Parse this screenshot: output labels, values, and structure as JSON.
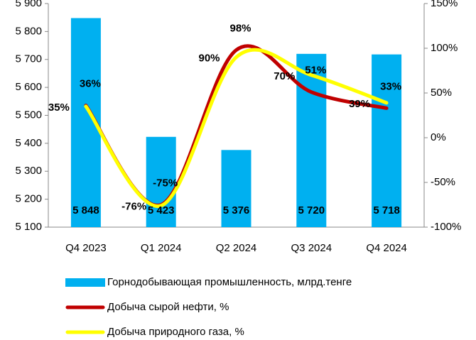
{
  "chart_data": {
    "type": "bar_line",
    "categories": [
      "Q4 2023",
      "Q1 2024",
      "Q2 2024",
      "Q3 2024",
      "Q4 2024"
    ],
    "ylim": [
      5100,
      5900
    ],
    "yticks": [
      {
        "value": 5100,
        "label": "5 100"
      },
      {
        "value": 5200,
        "label": "5 200"
      },
      {
        "value": 5300,
        "label": "5 300"
      },
      {
        "value": 5400,
        "label": "5 400"
      },
      {
        "value": 5500,
        "label": "5 500"
      },
      {
        "value": 5600,
        "label": "5 600"
      },
      {
        "value": 5700,
        "label": "5 700"
      },
      {
        "value": 5800,
        "label": "5 800"
      },
      {
        "value": 5900,
        "label": "5 900"
      }
    ],
    "y2lim": [
      -100,
      150
    ],
    "y2ticks": [
      {
        "value": -100,
        "label": "-100%"
      },
      {
        "value": -50,
        "label": "-50%"
      },
      {
        "value": 0,
        "label": "0%"
      },
      {
        "value": 50,
        "label": "50%"
      },
      {
        "value": 100,
        "label": "100%"
      },
      {
        "value": 150,
        "label": "150%"
      }
    ],
    "series": [
      {
        "name": "Горнодобывающая промышленность, млрд.тенге",
        "color": "#00b0f0",
        "kind": "bar",
        "values": [
          5848,
          5423,
          5376,
          5720,
          5718
        ],
        "value_labels": [
          "5 848",
          "5 423",
          "5 376",
          "5 720",
          "5 718"
        ],
        "label_color": "#000000"
      },
      {
        "name": "Добыча сырой нефти, %",
        "color": "#c00000",
        "kind": "line",
        "axis": "y2",
        "values": [
          36,
          -75,
          98,
          51,
          33
        ],
        "value_labels": [
          "36%",
          "-75%",
          "98%",
          "51%",
          "33%"
        ],
        "label_color": "#c0392b"
      },
      {
        "name": "Добыча природного газа, %",
        "color": "#ffff00",
        "kind": "line",
        "axis": "y2",
        "values": [
          35,
          -76,
          90,
          70,
          39
        ],
        "value_labels": [
          "35%",
          "-76%",
          "90%",
          "70%",
          "39%"
        ],
        "label_color": "#000000"
      }
    ]
  }
}
